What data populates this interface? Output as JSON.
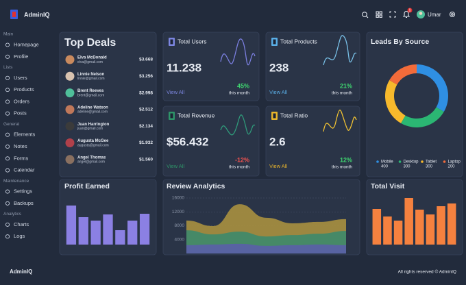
{
  "header": {
    "brand": "AdminIQ",
    "notifications": 1,
    "user": "Umar"
  },
  "sidebar": [
    {
      "title": "Main",
      "items": [
        "Homepage",
        "Profile"
      ]
    },
    {
      "title": "Lists",
      "items": [
        "Users",
        "Products",
        "Orders",
        "Posts"
      ]
    },
    {
      "title": "General",
      "items": [
        "Elements",
        "Notes",
        "Forms",
        "Calendar"
      ]
    },
    {
      "title": "Maintenance",
      "items": [
        "Settings",
        "Backups"
      ]
    },
    {
      "title": "Analytics",
      "items": [
        "Charts",
        "Logs"
      ]
    }
  ],
  "top_deals": {
    "title": "Top Deals",
    "deals": [
      {
        "name": "Elva McDonald",
        "email": "elva@gmail.com",
        "amount": "$3.668",
        "color": "#c98a5e"
      },
      {
        "name": "Linnie Nelson",
        "email": "linnie@gmail.com",
        "amount": "$3.256",
        "color": "#d9c3b0"
      },
      {
        "name": "Brent Reeves",
        "email": "brent@gmail.com",
        "amount": "$2.998",
        "color": "#4fbf9a"
      },
      {
        "name": "Adeline Watson",
        "email": "adeline@gmail.com",
        "amount": "$2.512",
        "color": "#c0785a"
      },
      {
        "name": "Juan Harrington",
        "email": "juan@gmail.com",
        "amount": "$2.134",
        "color": "#3b3b3b"
      },
      {
        "name": "Augusta McGee",
        "email": "augusta@gmail.com",
        "amount": "$1.932",
        "color": "#b0404a"
      },
      {
        "name": "Angel Thomas",
        "email": "angel@gmail.com",
        "amount": "$1.560",
        "color": "#8a7060"
      }
    ]
  },
  "stat_cards": [
    {
      "title": "Total Users",
      "value": "11.238",
      "link": "View All",
      "change": "45%",
      "period": "this month",
      "link_color": "#7c86e0",
      "change_color": "#3ed36f"
    },
    {
      "title": "Total Products",
      "value": "238",
      "link": "View All",
      "change": "21%",
      "period": "this month",
      "link_color": "#5aaee6",
      "change_color": "#3ed36f"
    },
    {
      "title": "Total Revenue",
      "value": "$56.432",
      "link": "View All",
      "change": "-12%",
      "period": "this month",
      "link_color": "#2e9468",
      "change_color": "#f0524f"
    },
    {
      "title": "Total Ratio",
      "value": "2.6",
      "link": "View All",
      "change": "12%",
      "period": "this month",
      "link_color": "#e9b52c",
      "change_color": "#3ed36f"
    }
  ],
  "leads_by_source": {
    "type": "pie",
    "title": "Leads By Source",
    "series": [
      {
        "name": "Mobile",
        "value": 400,
        "color": "#2f8fe3"
      },
      {
        "name": "Desktop",
        "value": 300,
        "color": "#2bb673"
      },
      {
        "name": "Tablet",
        "value": 300,
        "color": "#f7b92c"
      },
      {
        "name": "Laptop",
        "value": 200,
        "color": "#f26b3a"
      }
    ]
  },
  "profit_earned": {
    "type": "bar",
    "title": "Profit Earned",
    "color": "#8b80e3",
    "values": [
      57,
      40,
      35,
      44,
      21,
      35,
      45
    ]
  },
  "review_analytics": {
    "type": "area",
    "title": "Review Analytics",
    "ylim": [
      0,
      16000
    ],
    "yticks": [
      4000,
      8000,
      12000,
      16000
    ],
    "grid": true,
    "series": [
      {
        "color": "#a8903f",
        "values": [
          9500,
          7900,
          14200,
          10300,
          8700,
          9100,
          9900
        ]
      },
      {
        "color": "#3d8a6b",
        "values": [
          6700,
          5500,
          6300,
          4900,
          5300,
          5700,
          6500
        ]
      },
      {
        "color": "#5a5fa8",
        "values": [
          2400,
          2600,
          2800,
          2200,
          2400,
          2600,
          2400
        ]
      }
    ]
  },
  "total_visit": {
    "type": "bar",
    "title": "Total Visit",
    "color": "#f5813f",
    "values": [
      52,
      41,
      35,
      68,
      51,
      44,
      56,
      60
    ]
  },
  "footer": {
    "brand": "AdminIQ",
    "copyright": "All rights reserved © AdminIQ"
  }
}
